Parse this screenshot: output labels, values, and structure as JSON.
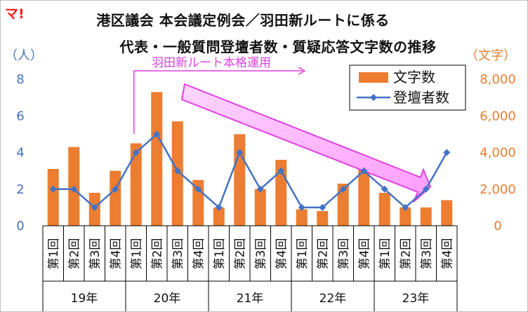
{
  "logo": "マ!",
  "title_line1": "港区議会 本会議定例会／羽田新ルートに係る",
  "title_line2": "代表・一般質問登壇者数・質疑応答文字数の推移",
  "colors": {
    "bars": "#ed7d31",
    "line": "#4472c4",
    "annotation": "#e040e0",
    "arrow_fill": "#ffc0ff"
  },
  "chart_data": {
    "type": "bar+line",
    "left_axis": {
      "unit_label": "（人）",
      "ticks": [
        "0",
        "2",
        "4",
        "6",
        "8"
      ],
      "range": [
        0,
        8
      ]
    },
    "right_axis": {
      "unit_label": "（文字）",
      "ticks": [
        "0",
        "2,000",
        "4,000",
        "6,000",
        "8,000"
      ],
      "range": [
        0,
        8000
      ]
    },
    "categories": [
      "第1回",
      "第2回",
      "第3回",
      "第4回",
      "第1回",
      "第2回",
      "第3回",
      "第4回",
      "第1回",
      "第2回",
      "第3回",
      "第4回",
      "第1回",
      "第2回",
      "第3回",
      "第4回",
      "第1回",
      "第2回",
      "第3回",
      "第4回"
    ],
    "groups": [
      "19年",
      "20年",
      "21年",
      "22年",
      "23年"
    ],
    "series": [
      {
        "name": "文字数",
        "type": "bar",
        "axis": "right",
        "values": [
          3100,
          4300,
          1800,
          3000,
          4500,
          7300,
          5700,
          2500,
          1000,
          5000,
          2000,
          3600,
          900,
          800,
          2300,
          3600,
          1800,
          1000,
          1000,
          1400
        ]
      },
      {
        "name": "登壇者数",
        "type": "line",
        "axis": "left",
        "values": [
          2,
          2,
          1,
          2,
          4,
          5,
          3,
          2,
          1,
          4,
          2,
          3,
          1,
          1,
          2,
          3,
          2,
          1,
          2,
          4
        ]
      }
    ],
    "annotation": "羽田新ルート本格運用",
    "legend_position": "top-right",
    "grid": false
  }
}
